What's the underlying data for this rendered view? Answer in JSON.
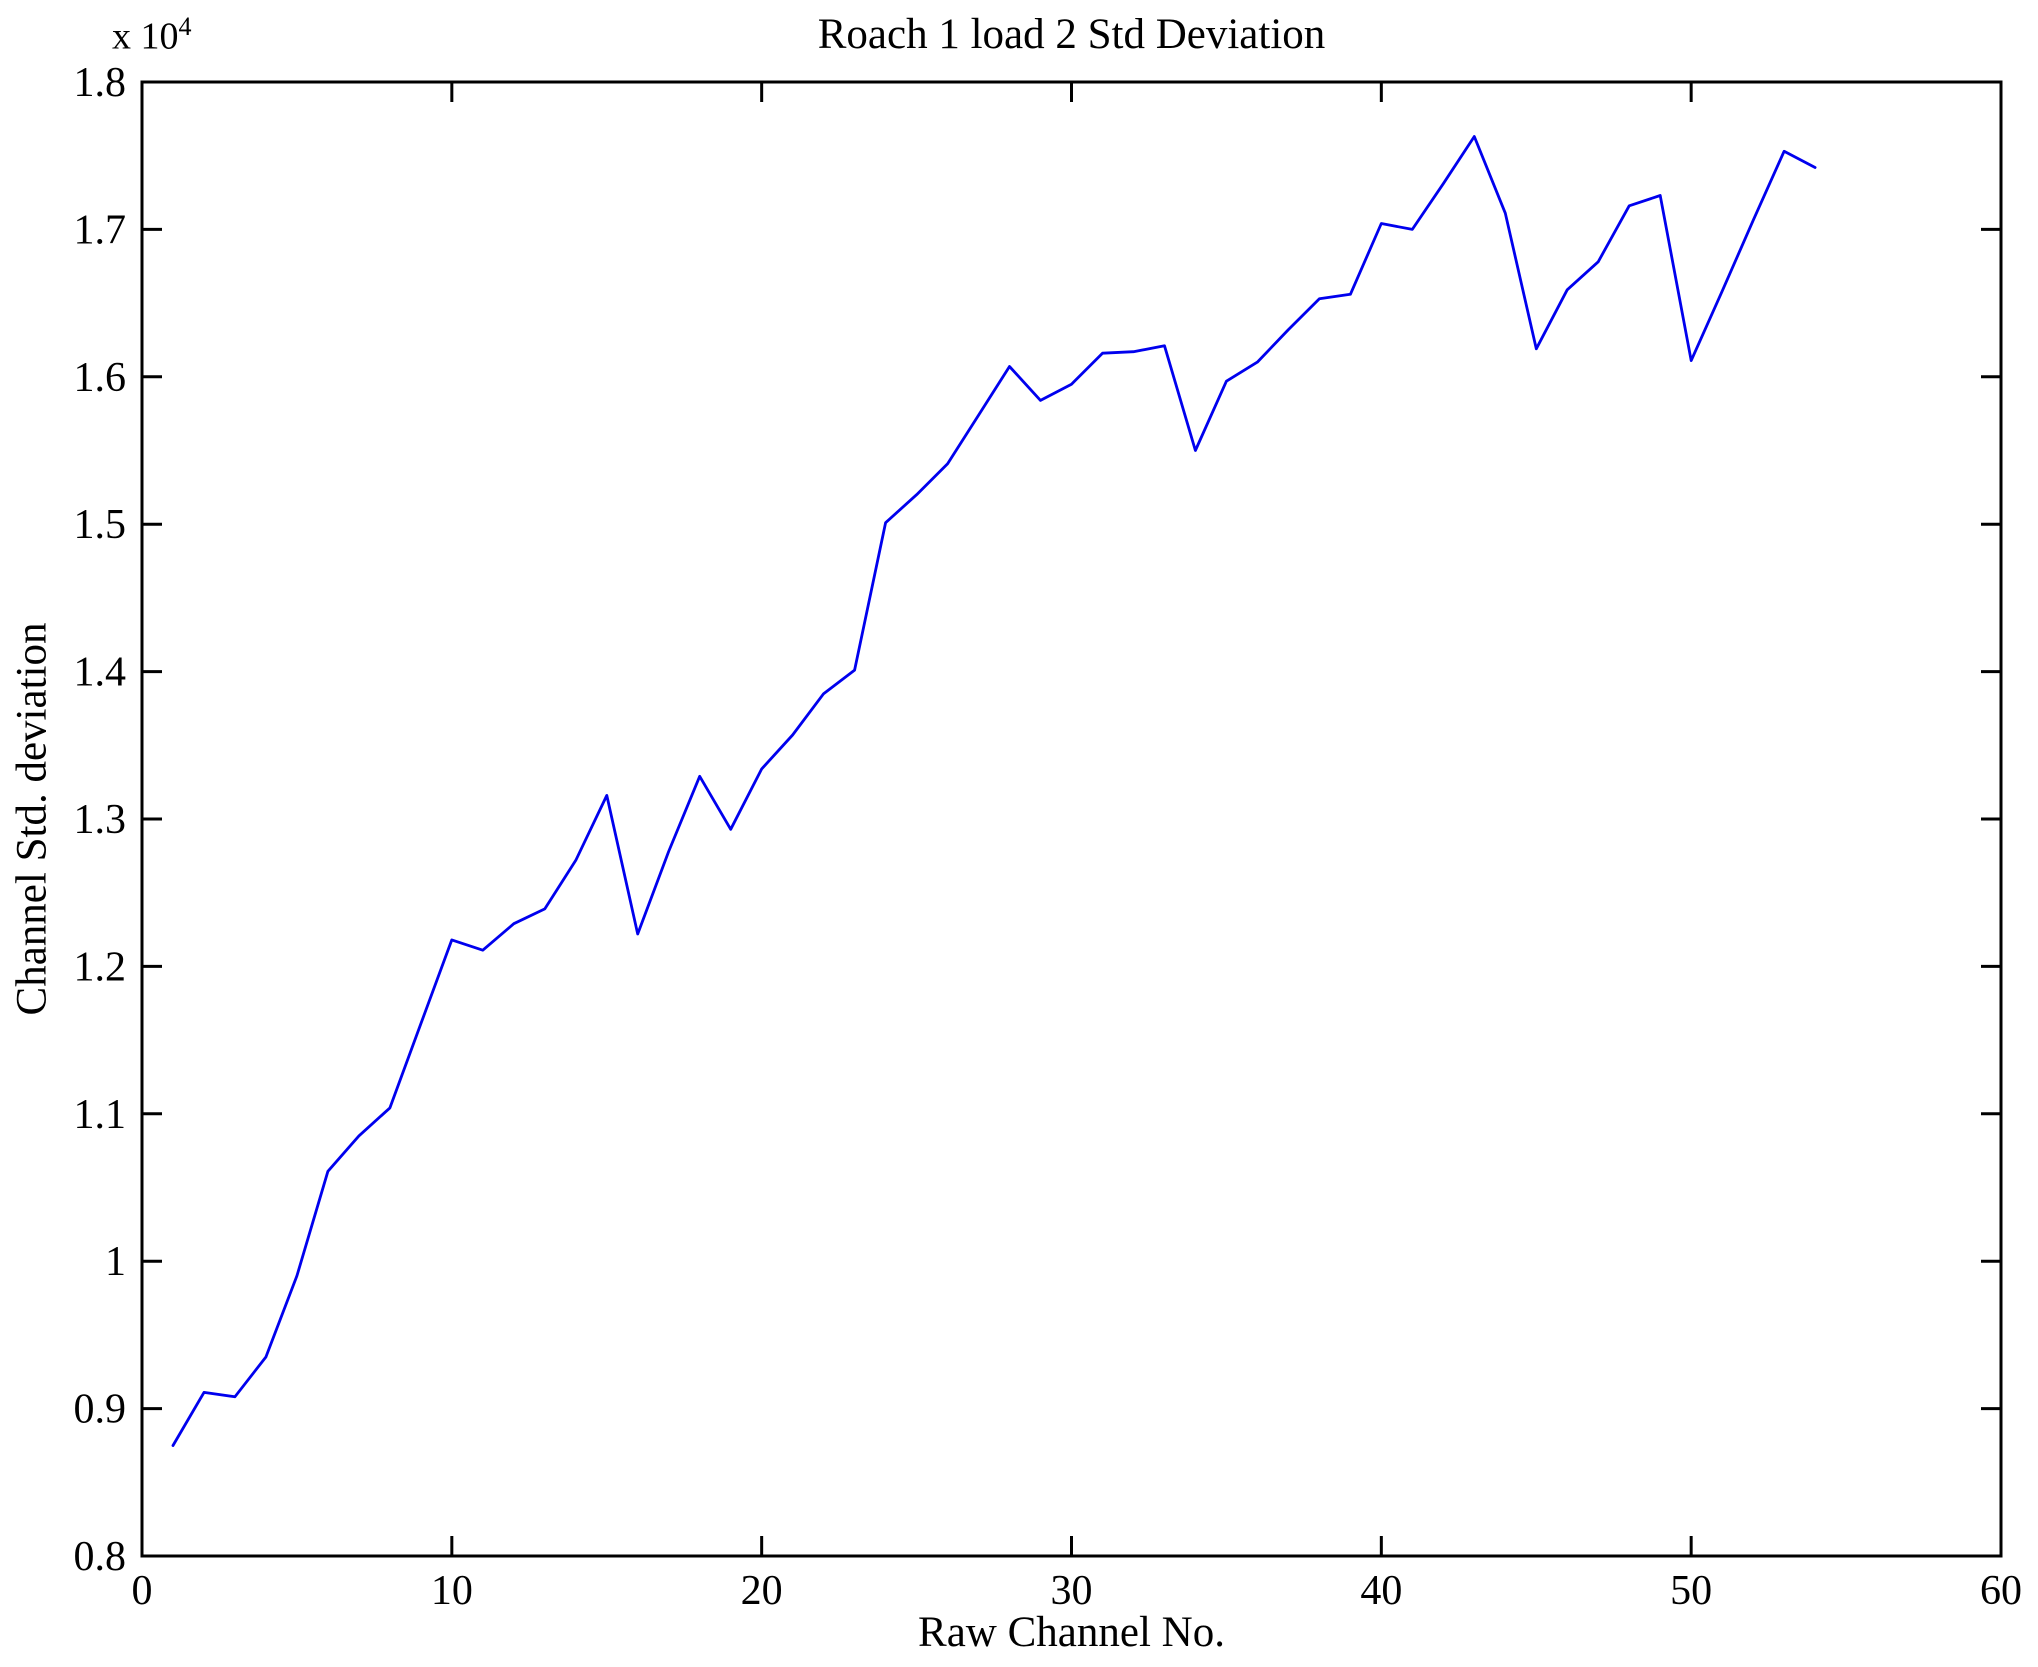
{
  "figure": {
    "background": "#ffffff"
  },
  "chart_data": {
    "type": "line",
    "title": "Roach 1 load 2 Std Deviation",
    "xlabel": "Raw Channel No.",
    "ylabel": "Channel Std. deviation",
    "y_axis_exponent_label": "x 10",
    "y_axis_exponent_power": "4",
    "xlim": [
      0,
      60
    ],
    "ylim": [
      8000,
      18000
    ],
    "x_ticks": [
      0,
      10,
      20,
      30,
      40,
      50,
      60
    ],
    "x_tick_labels": [
      "0",
      "10",
      "20",
      "30",
      "40",
      "50",
      "60"
    ],
    "y_ticks": [
      8000,
      9000,
      10000,
      11000,
      12000,
      13000,
      14000,
      15000,
      16000,
      17000,
      18000
    ],
    "y_tick_labels": [
      "0.8",
      "0.9",
      "1",
      "1.1",
      "1.2",
      "1.3",
      "1.4",
      "1.5",
      "1.6",
      "1.7",
      "1.8"
    ],
    "grid": false,
    "legend_position": "none",
    "line_color": "#0000ee",
    "axis_color": "#000000",
    "series": [
      {
        "name": "Channel Std. deviation",
        "x": [
          1,
          2,
          3,
          4,
          5,
          6,
          7,
          8,
          9,
          10,
          11,
          12,
          13,
          14,
          15,
          16,
          17,
          18,
          19,
          20,
          21,
          22,
          23,
          24,
          25,
          26,
          27,
          28,
          29,
          30,
          31,
          32,
          33,
          34,
          35,
          36,
          37,
          38,
          39,
          40,
          41,
          42,
          43,
          44,
          45,
          46,
          47,
          48,
          49,
          50,
          51,
          52,
          53,
          54
        ],
        "y": [
          8750,
          9110,
          9080,
          9350,
          9900,
          10610,
          10850,
          11040,
          11610,
          12180,
          12110,
          12290,
          12390,
          12720,
          13160,
          12220,
          12780,
          13290,
          12930,
          13340,
          13570,
          13850,
          14010,
          15010,
          15200,
          15410,
          15740,
          16070,
          15840,
          15950,
          16160,
          16170,
          16210,
          15500,
          15970,
          16100,
          16320,
          16530,
          16560,
          17040,
          17000,
          17310,
          17630,
          17110,
          16190,
          16590,
          16780,
          17160,
          17230,
          16110,
          16580,
          17060,
          17530,
          17420
        ]
      }
    ]
  }
}
